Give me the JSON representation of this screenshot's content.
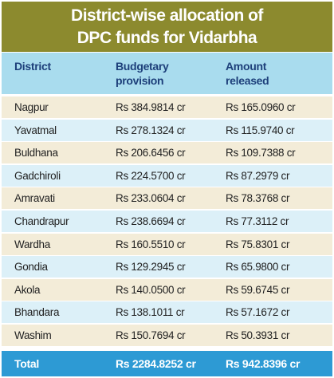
{
  "header": {
    "title": [
      "District-wise allocation of",
      "DPC funds for Vidarbha"
    ]
  },
  "table": {
    "columns": [
      "District",
      "Budgetary provision",
      "Amount released"
    ],
    "rows": [
      [
        "Nagpur",
        "Rs 384.9814 cr",
        "Rs 165.0960 cr"
      ],
      [
        "Yavatmal",
        "Rs 278.1324 cr",
        "Rs 115.9740 cr"
      ],
      [
        "Buldhana",
        "Rs 206.6456 cr",
        "Rs 109.7388 cr"
      ],
      [
        "Gadchiroli",
        "Rs 224.5700 cr",
        "Rs 87.2979 cr"
      ],
      [
        "Amravati",
        "Rs 233.0604 cr",
        "Rs 78.3768 cr"
      ],
      [
        "Chandrapur",
        "Rs 238.6694 cr",
        "Rs 77.3112 cr"
      ],
      [
        "Wardha",
        "Rs 160.5510 cr",
        "Rs 75.8301 cr"
      ],
      [
        "Gondia",
        "Rs 129.2945 cr",
        "Rs 65.9800 cr"
      ],
      [
        "Akola",
        "Rs 140.0500 cr",
        "Rs 59.6745 cr"
      ],
      [
        "Bhandara",
        "Rs 138.1011 cr",
        "Rs 57.1672 cr"
      ],
      [
        "Washim",
        "Rs 150.7694 cr",
        "Rs 50.3931 cr"
      ]
    ],
    "total": [
      "Total",
      "Rs 2284.8252 cr",
      "Rs 942.8396 cr"
    ]
  }
}
